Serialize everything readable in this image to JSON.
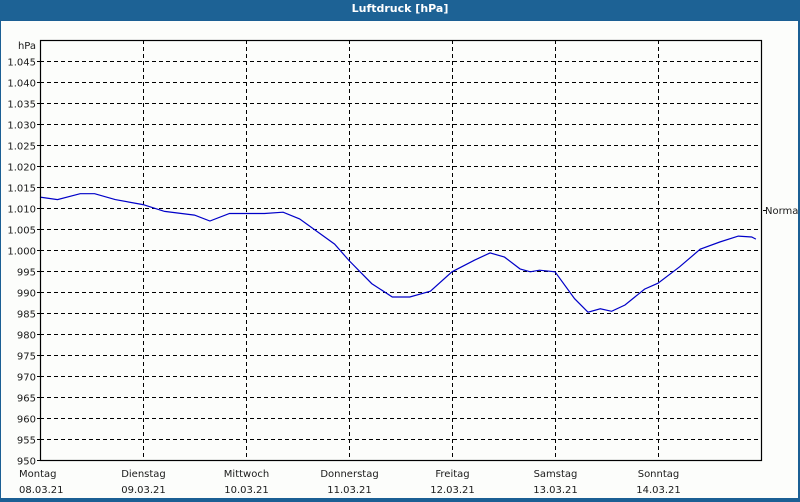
{
  "window": {
    "title": "Luftdruck [hPa]"
  },
  "chart_data": {
    "type": "line",
    "title": "Luftdruck [hPa]",
    "ylabel": "hPa",
    "xlabel": "",
    "ylim": [
      950,
      1050
    ],
    "yticks": [
      950,
      955,
      960,
      965,
      970,
      975,
      980,
      985,
      990,
      995,
      1000,
      1005,
      1010,
      1015,
      1020,
      1025,
      1030,
      1035,
      1040,
      1045
    ],
    "ytick_labels": [
      "950",
      "955",
      "960",
      "965",
      "970",
      "975",
      "980",
      "985",
      "990",
      "995",
      "1.000",
      "1.005",
      "1.010",
      "1.015",
      "1.020",
      "1.025",
      "1.030",
      "1.035",
      "1.040",
      "1.045"
    ],
    "xlim_days": [
      0,
      7
    ],
    "xticks": [
      {
        "day": "Montag",
        "date": "08.03.21"
      },
      {
        "day": "Dienstag",
        "date": "09.03.21"
      },
      {
        "day": "Mittwoch",
        "date": "10.03.21"
      },
      {
        "day": "Donnerstag",
        "date": "11.03.21"
      },
      {
        "day": "Freitag",
        "date": "12.03.21"
      },
      {
        "day": "Samstag",
        "date": "13.03.21"
      },
      {
        "day": "Sonntag",
        "date": "14.03.21"
      }
    ],
    "grid": true,
    "grid_style": "dashed",
    "reference_line": {
      "label": "Normal",
      "value": 1005
    },
    "series": [
      {
        "name": "Luftdruck",
        "color": "#0000c8",
        "x_days": [
          0.0,
          0.17,
          0.39,
          0.53,
          0.73,
          1.0,
          1.21,
          1.5,
          1.65,
          1.84,
          2.18,
          2.36,
          2.52,
          2.86,
          3.0,
          3.22,
          3.42,
          3.59,
          3.79,
          4.0,
          4.22,
          4.37,
          4.51,
          4.66,
          4.76,
          4.85,
          5.0,
          5.19,
          5.32,
          5.44,
          5.55,
          5.68,
          5.87,
          6.0,
          6.21,
          6.41,
          6.6,
          6.78,
          6.91,
          6.95
        ],
        "values": [
          1012.6,
          1012.0,
          1013.4,
          1013.4,
          1012.0,
          1010.8,
          1009.2,
          1008.3,
          1006.9,
          1008.7,
          1008.7,
          1009.0,
          1007.4,
          1001.4,
          997.5,
          992.0,
          988.8,
          988.8,
          990.2,
          994.8,
          997.6,
          999.3,
          998.3,
          995.5,
          994.8,
          995.2,
          994.8,
          988.4,
          985.2,
          986.0,
          985.4,
          986.9,
          990.7,
          992.1,
          996.0,
          1000.2,
          1001.9,
          1003.3,
          1003.1,
          1002.6
        ]
      }
    ]
  },
  "colors": {
    "frame": "#1b5f94",
    "titlebar": "#1d6295",
    "plot_bg": "#fcfdfb",
    "line": "#0000c8",
    "grid": "#000000"
  }
}
